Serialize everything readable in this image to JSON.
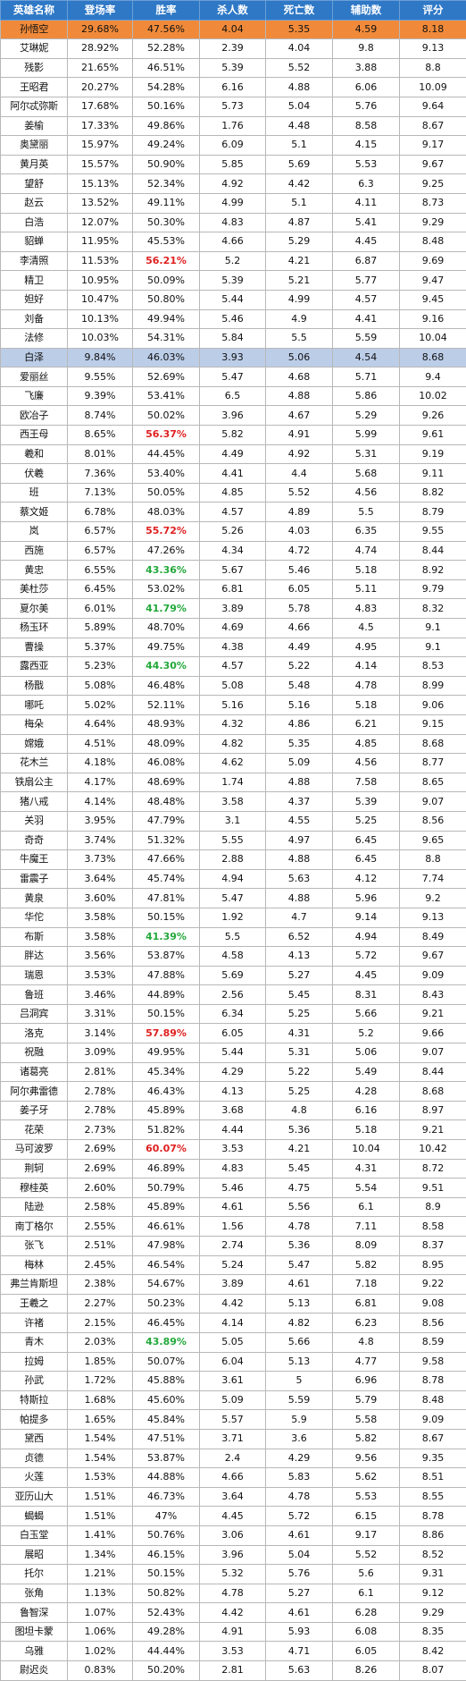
{
  "headers": [
    "英雄名称",
    "登场率",
    "胜率",
    "杀人数",
    "死亡数",
    "辅助数",
    "评分"
  ],
  "rows": [
    {
      "cells": [
        "孙悟空",
        "29.68%",
        "47.56%",
        "4.04",
        "5.35",
        "4.59",
        "8.18"
      ],
      "highlight": "orange"
    },
    {
      "cells": [
        "艾琳妮",
        "28.92%",
        "52.28%",
        "2.39",
        "4.04",
        "9.8",
        "9.13"
      ]
    },
    {
      "cells": [
        "残影",
        "21.65%",
        "46.51%",
        "5.39",
        "5.52",
        "3.88",
        "8.8"
      ]
    },
    {
      "cells": [
        "王昭君",
        "20.27%",
        "54.28%",
        "6.16",
        "4.88",
        "6.06",
        "10.09"
      ]
    },
    {
      "cells": [
        "阿尔忒弥斯",
        "17.68%",
        "50.16%",
        "5.73",
        "5.04",
        "5.76",
        "9.64"
      ]
    },
    {
      "cells": [
        "姜榆",
        "17.33%",
        "49.86%",
        "1.76",
        "4.48",
        "8.58",
        "8.67"
      ]
    },
    {
      "cells": [
        "奥黛丽",
        "15.97%",
        "49.24%",
        "6.09",
        "5.1",
        "4.15",
        "9.17"
      ]
    },
    {
      "cells": [
        "黄月英",
        "15.57%",
        "50.90%",
        "5.85",
        "5.69",
        "5.53",
        "9.67"
      ]
    },
    {
      "cells": [
        "望舒",
        "15.13%",
        "52.34%",
        "4.92",
        "4.42",
        "6.3",
        "9.25"
      ]
    },
    {
      "cells": [
        "赵云",
        "13.52%",
        "49.11%",
        "4.99",
        "5.1",
        "4.11",
        "8.73"
      ]
    },
    {
      "cells": [
        "白浩",
        "12.07%",
        "50.30%",
        "4.83",
        "4.87",
        "5.41",
        "9.29"
      ]
    },
    {
      "cells": [
        "貂蝉",
        "11.95%",
        "45.53%",
        "4.66",
        "5.29",
        "4.45",
        "8.48"
      ]
    },
    {
      "cells": [
        "李清照",
        "11.53%",
        "56.21%",
        "5.2",
        "4.21",
        "6.87",
        "9.69"
      ],
      "win": "red"
    },
    {
      "cells": [
        "精卫",
        "10.95%",
        "50.09%",
        "5.39",
        "5.21",
        "5.77",
        "9.47"
      ]
    },
    {
      "cells": [
        "妲好",
        "10.47%",
        "50.80%",
        "5.44",
        "4.99",
        "4.57",
        "9.45"
      ]
    },
    {
      "cells": [
        "刘备",
        "10.13%",
        "49.94%",
        "5.46",
        "4.9",
        "4.41",
        "9.16"
      ]
    },
    {
      "cells": [
        "法修",
        "10.03%",
        "54.31%",
        "5.84",
        "5.5",
        "5.59",
        "10.04"
      ]
    },
    {
      "cells": [
        "白泽",
        "9.84%",
        "46.03%",
        "3.93",
        "5.06",
        "4.54",
        "8.68"
      ],
      "highlight": "blue"
    },
    {
      "cells": [
        "爱丽丝",
        "9.55%",
        "52.69%",
        "5.47",
        "4.68",
        "5.71",
        "9.4"
      ]
    },
    {
      "cells": [
        "飞廉",
        "9.39%",
        "53.41%",
        "6.5",
        "4.88",
        "5.86",
        "10.02"
      ]
    },
    {
      "cells": [
        "欧冶子",
        "8.74%",
        "50.02%",
        "3.96",
        "4.67",
        "5.29",
        "9.26"
      ]
    },
    {
      "cells": [
        "西王母",
        "8.65%",
        "56.37%",
        "5.82",
        "4.91",
        "5.99",
        "9.61"
      ],
      "win": "red"
    },
    {
      "cells": [
        "羲和",
        "8.01%",
        "44.45%",
        "4.49",
        "4.92",
        "5.31",
        "9.19"
      ]
    },
    {
      "cells": [
        "伏羲",
        "7.36%",
        "53.40%",
        "4.41",
        "4.4",
        "5.68",
        "9.11"
      ]
    },
    {
      "cells": [
        "班",
        "7.13%",
        "50.05%",
        "4.85",
        "5.52",
        "4.56",
        "8.82"
      ]
    },
    {
      "cells": [
        "蔡文姬",
        "6.78%",
        "48.03%",
        "4.57",
        "4.89",
        "5.5",
        "8.79"
      ]
    },
    {
      "cells": [
        "岚",
        "6.57%",
        "55.72%",
        "5.26",
        "4.03",
        "6.35",
        "9.55"
      ],
      "win": "red"
    },
    {
      "cells": [
        "西施",
        "6.57%",
        "47.26%",
        "4.34",
        "4.72",
        "4.74",
        "8.44"
      ]
    },
    {
      "cells": [
        "黄忠",
        "6.55%",
        "43.36%",
        "5.67",
        "5.46",
        "5.18",
        "8.92"
      ],
      "win": "green"
    },
    {
      "cells": [
        "美杜莎",
        "6.45%",
        "53.02%",
        "6.81",
        "6.05",
        "5.11",
        "9.79"
      ]
    },
    {
      "cells": [
        "夏尔美",
        "6.01%",
        "41.79%",
        "3.89",
        "5.78",
        "4.83",
        "8.32"
      ],
      "win": "green"
    },
    {
      "cells": [
        "杨玉环",
        "5.89%",
        "48.70%",
        "4.69",
        "4.66",
        "4.5",
        "9.1"
      ]
    },
    {
      "cells": [
        "曹操",
        "5.37%",
        "49.75%",
        "4.38",
        "4.49",
        "4.95",
        "9.1"
      ]
    },
    {
      "cells": [
        "露西亚",
        "5.23%",
        "44.30%",
        "4.57",
        "5.22",
        "4.14",
        "8.53"
      ],
      "win": "green"
    },
    {
      "cells": [
        "杨戬",
        "5.08%",
        "46.48%",
        "5.08",
        "5.48",
        "4.78",
        "8.99"
      ]
    },
    {
      "cells": [
        "哪吒",
        "5.02%",
        "52.11%",
        "5.16",
        "5.16",
        "5.18",
        "9.06"
      ]
    },
    {
      "cells": [
        "梅朵",
        "4.64%",
        "48.93%",
        "4.32",
        "4.86",
        "6.21",
        "9.15"
      ]
    },
    {
      "cells": [
        "嫦娥",
        "4.51%",
        "48.09%",
        "4.82",
        "5.35",
        "4.85",
        "8.68"
      ]
    },
    {
      "cells": [
        "花木兰",
        "4.18%",
        "46.08%",
        "4.62",
        "5.09",
        "4.56",
        "8.77"
      ]
    },
    {
      "cells": [
        "铁扇公主",
        "4.17%",
        "48.69%",
        "1.74",
        "4.88",
        "7.58",
        "8.65"
      ]
    },
    {
      "cells": [
        "猪八戒",
        "4.14%",
        "48.48%",
        "3.58",
        "4.37",
        "5.39",
        "9.07"
      ]
    },
    {
      "cells": [
        "关羽",
        "3.95%",
        "47.79%",
        "3.1",
        "4.55",
        "5.25",
        "8.56"
      ]
    },
    {
      "cells": [
        "奇奇",
        "3.74%",
        "51.32%",
        "5.55",
        "4.97",
        "6.45",
        "9.65"
      ]
    },
    {
      "cells": [
        "牛魔王",
        "3.73%",
        "47.66%",
        "2.88",
        "4.88",
        "6.45",
        "8.8"
      ]
    },
    {
      "cells": [
        "雷震子",
        "3.64%",
        "45.74%",
        "4.94",
        "5.63",
        "4.12",
        "7.74"
      ]
    },
    {
      "cells": [
        "黄泉",
        "3.60%",
        "47.81%",
        "5.47",
        "4.88",
        "5.96",
        "9.2"
      ]
    },
    {
      "cells": [
        "华佗",
        "3.58%",
        "50.15%",
        "1.92",
        "4.7",
        "9.14",
        "9.13"
      ]
    },
    {
      "cells": [
        "布斯",
        "3.58%",
        "41.39%",
        "5.5",
        "6.52",
        "4.94",
        "8.49"
      ],
      "win": "green"
    },
    {
      "cells": [
        "胖达",
        "3.56%",
        "53.87%",
        "4.58",
        "4.13",
        "5.72",
        "9.67"
      ]
    },
    {
      "cells": [
        "瑞恩",
        "3.53%",
        "47.88%",
        "5.69",
        "5.27",
        "4.45",
        "9.09"
      ]
    },
    {
      "cells": [
        "鲁班",
        "3.46%",
        "44.89%",
        "2.56",
        "5.45",
        "8.31",
        "8.43"
      ]
    },
    {
      "cells": [
        "吕洞宾",
        "3.31%",
        "50.15%",
        "6.34",
        "5.25",
        "5.66",
        "9.21"
      ]
    },
    {
      "cells": [
        "洛克",
        "3.14%",
        "57.89%",
        "6.05",
        "4.31",
        "5.2",
        "9.66"
      ],
      "win": "red"
    },
    {
      "cells": [
        "祝融",
        "3.09%",
        "49.95%",
        "5.44",
        "5.31",
        "5.06",
        "9.07"
      ]
    },
    {
      "cells": [
        "诸葛亮",
        "2.81%",
        "45.34%",
        "4.29",
        "5.22",
        "5.49",
        "8.44"
      ]
    },
    {
      "cells": [
        "阿尔弗雷德",
        "2.78%",
        "46.43%",
        "4.13",
        "5.25",
        "4.28",
        "8.68"
      ]
    },
    {
      "cells": [
        "姜子牙",
        "2.78%",
        "45.89%",
        "3.68",
        "4.8",
        "6.16",
        "8.97"
      ]
    },
    {
      "cells": [
        "花荣",
        "2.73%",
        "51.82%",
        "4.44",
        "5.36",
        "5.18",
        "9.21"
      ]
    },
    {
      "cells": [
        "马可波罗",
        "2.69%",
        "60.07%",
        "3.53",
        "4.21",
        "10.04",
        "10.42"
      ],
      "win": "red"
    },
    {
      "cells": [
        "荆轲",
        "2.69%",
        "46.89%",
        "4.83",
        "5.45",
        "4.31",
        "8.72"
      ]
    },
    {
      "cells": [
        "穆桂英",
        "2.60%",
        "50.79%",
        "5.46",
        "4.75",
        "5.54",
        "9.51"
      ]
    },
    {
      "cells": [
        "陆逊",
        "2.58%",
        "45.89%",
        "4.61",
        "5.56",
        "6.1",
        "8.9"
      ]
    },
    {
      "cells": [
        "南丁格尔",
        "2.55%",
        "46.61%",
        "1.56",
        "4.78",
        "7.11",
        "8.58"
      ]
    },
    {
      "cells": [
        "张飞",
        "2.51%",
        "47.98%",
        "2.74",
        "5.36",
        "8.09",
        "8.37"
      ]
    },
    {
      "cells": [
        "梅林",
        "2.45%",
        "46.54%",
        "5.24",
        "5.47",
        "5.82",
        "8.95"
      ]
    },
    {
      "cells": [
        "弗兰肯斯坦",
        "2.38%",
        "54.67%",
        "3.89",
        "4.61",
        "7.18",
        "9.22"
      ]
    },
    {
      "cells": [
        "王羲之",
        "2.27%",
        "50.23%",
        "4.42",
        "5.13",
        "6.81",
        "9.08"
      ]
    },
    {
      "cells": [
        "许褚",
        "2.15%",
        "46.45%",
        "4.14",
        "4.82",
        "6.23",
        "8.56"
      ]
    },
    {
      "cells": [
        "青木",
        "2.03%",
        "43.89%",
        "5.05",
        "5.66",
        "4.8",
        "8.59"
      ],
      "win": "green"
    },
    {
      "cells": [
        "拉姆",
        "1.85%",
        "50.07%",
        "6.04",
        "5.13",
        "4.77",
        "9.58"
      ]
    },
    {
      "cells": [
        "孙武",
        "1.72%",
        "45.88%",
        "3.61",
        "5",
        "6.96",
        "8.78"
      ]
    },
    {
      "cells": [
        "特斯拉",
        "1.68%",
        "45.60%",
        "5.09",
        "5.59",
        "5.79",
        "8.48"
      ]
    },
    {
      "cells": [
        "帕提多",
        "1.65%",
        "45.84%",
        "5.57",
        "5.9",
        "5.58",
        "9.09"
      ]
    },
    {
      "cells": [
        "黛西",
        "1.54%",
        "47.51%",
        "3.71",
        "3.6",
        "5.82",
        "8.67"
      ]
    },
    {
      "cells": [
        "贞德",
        "1.54%",
        "53.87%",
        "2.4",
        "4.29",
        "9.56",
        "9.35"
      ]
    },
    {
      "cells": [
        "火莲",
        "1.53%",
        "44.88%",
        "4.66",
        "5.83",
        "5.62",
        "8.51"
      ]
    },
    {
      "cells": [
        "亚历山大",
        "1.51%",
        "46.73%",
        "3.64",
        "4.78",
        "5.53",
        "8.55"
      ]
    },
    {
      "cells": [
        "蝎蝎",
        "1.51%",
        "47%",
        "4.45",
        "5.72",
        "6.15",
        "8.78"
      ]
    },
    {
      "cells": [
        "白玉堂",
        "1.41%",
        "50.76%",
        "3.06",
        "4.61",
        "9.17",
        "8.86"
      ]
    },
    {
      "cells": [
        "展昭",
        "1.34%",
        "46.15%",
        "3.96",
        "5.04",
        "5.52",
        "8.52"
      ]
    },
    {
      "cells": [
        "托尔",
        "1.21%",
        "50.15%",
        "5.32",
        "5.76",
        "5.6",
        "9.31"
      ]
    },
    {
      "cells": [
        "张角",
        "1.13%",
        "50.82%",
        "4.78",
        "5.27",
        "6.1",
        "9.12"
      ]
    },
    {
      "cells": [
        "鲁智深",
        "1.07%",
        "52.43%",
        "4.42",
        "4.61",
        "6.28",
        "9.29"
      ]
    },
    {
      "cells": [
        "图坦卡蒙",
        "1.06%",
        "49.28%",
        "4.91",
        "5.93",
        "6.08",
        "8.35"
      ]
    },
    {
      "cells": [
        "乌雅",
        "1.02%",
        "44.44%",
        "3.53",
        "4.71",
        "6.05",
        "8.42"
      ]
    },
    {
      "cells": [
        "尉迟炎",
        "0.83%",
        "50.20%",
        "2.81",
        "5.63",
        "8.26",
        "8.07"
      ]
    }
  ]
}
